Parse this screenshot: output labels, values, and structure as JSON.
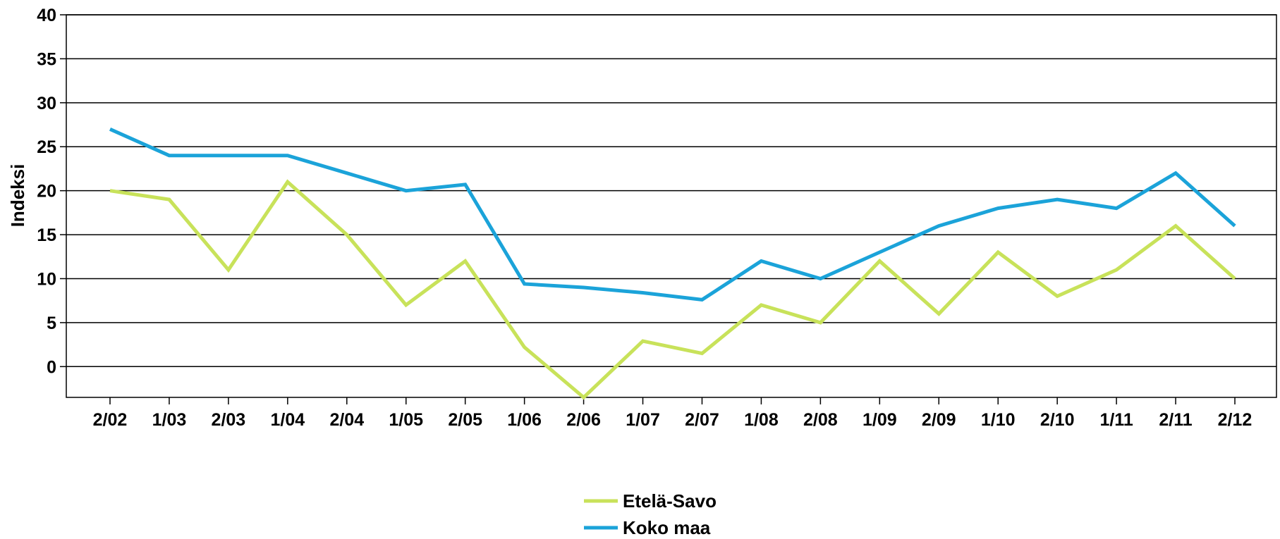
{
  "chart_data": {
    "type": "line",
    "ylabel": "Indeksi",
    "xlabel": "",
    "ylim": [
      -3.5,
      40
    ],
    "yticks": [
      0,
      5,
      10,
      15,
      20,
      25,
      30,
      35,
      40
    ],
    "grid": "horizontal",
    "legend_position": "bottom-center",
    "categories": [
      "2/02",
      "1/03",
      "2/03",
      "1/04",
      "2/04",
      "1/05",
      "2/05",
      "1/06",
      "2/06",
      "1/07",
      "2/07",
      "1/08",
      "2/08",
      "1/09",
      "2/09",
      "1/10",
      "2/10",
      "1/11",
      "2/11",
      "2/12"
    ],
    "series": [
      {
        "name": "Etelä-Savo",
        "color": "#c8e25a",
        "values": [
          20,
          19,
          11,
          21,
          15,
          7,
          12,
          2.2,
          -3.5,
          2.9,
          1.5,
          7,
          5,
          12,
          6,
          13,
          8,
          11,
          16,
          10
        ]
      },
      {
        "name": "Koko maa",
        "color": "#1ba3d9",
        "values": [
          27,
          24,
          24,
          24,
          22,
          20,
          20.7,
          9.4,
          9,
          8.4,
          7.6,
          12,
          10,
          13,
          16,
          18,
          19,
          18,
          22,
          16
        ]
      }
    ]
  }
}
